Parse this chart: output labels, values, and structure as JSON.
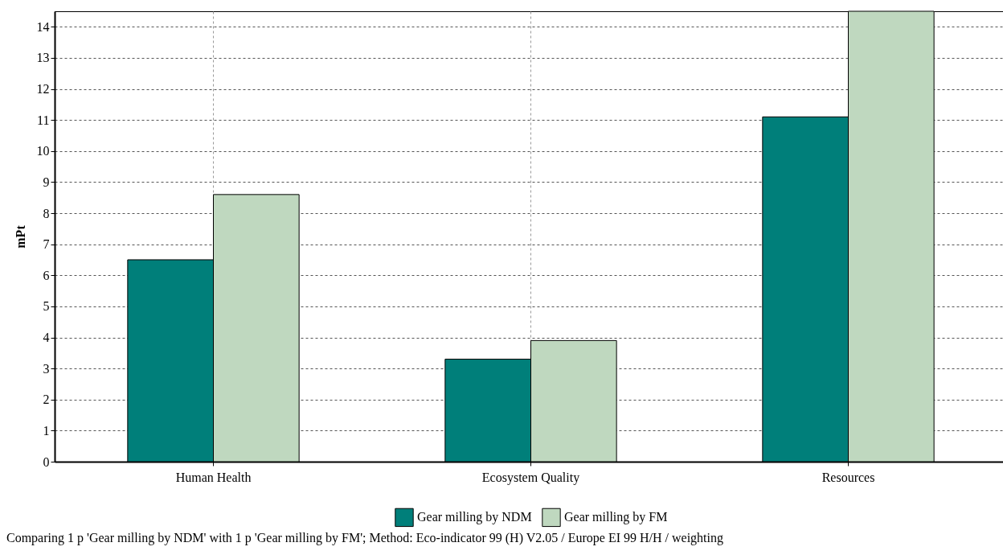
{
  "chart_data": {
    "type": "bar",
    "categories": [
      "Human Health",
      "Ecosystem Quality",
      "Resources"
    ],
    "series": [
      {
        "name": "Gear milling by NDM",
        "color": "#007f7a",
        "values": [
          6.5,
          3.3,
          11.1
        ]
      },
      {
        "name": "Gear milling by FM",
        "color": "#bfd8bf",
        "values": [
          8.6,
          3.9,
          14.5
        ]
      }
    ],
    "ylabel": "mPt",
    "ylim": [
      0,
      14.5
    ],
    "yticks": [
      0,
      1,
      2,
      3,
      4,
      5,
      6,
      7,
      8,
      9,
      10,
      11,
      12,
      13,
      14
    ],
    "grid": true,
    "legend": "bottom",
    "annotations": [
      "Comparing 1 p 'Gear milling by NDM' with 1 p 'Gear milling by FM';  Method: Eco-indicator 99 (H) V2.05 /  Europe EI 99 H/H / weighting"
    ]
  }
}
